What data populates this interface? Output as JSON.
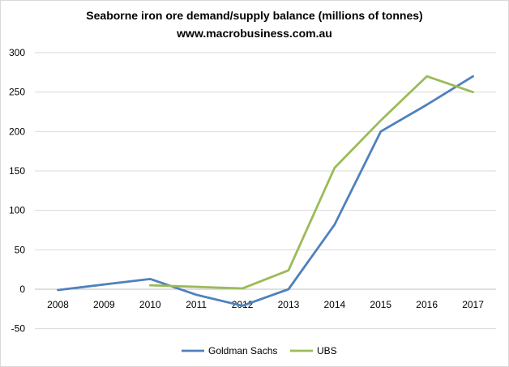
{
  "chart_data": {
    "type": "line",
    "title": "Seaborne iron ore demand/supply balance (millions of tonnes)",
    "subtitle": "www.macrobusiness.com.au",
    "categories": [
      "2008",
      "2009",
      "2010",
      "2011",
      "2012",
      "2013",
      "2014",
      "2015",
      "2016",
      "2017"
    ],
    "series": [
      {
        "name": "Goldman Sachs",
        "color": "#4f81bd",
        "values": [
          -1,
          6,
          13,
          -7,
          -21,
          0,
          82,
          200,
          234,
          270
        ]
      },
      {
        "name": "UBS",
        "color": "#9bbb59",
        "values": [
          null,
          null,
          5,
          3,
          1,
          24,
          154,
          214,
          270,
          250
        ]
      }
    ],
    "y_ticks": [
      "300",
      "250",
      "200",
      "150",
      "100",
      "50",
      "0",
      "-50"
    ],
    "ylim": [
      -50,
      300
    ],
    "grid": true,
    "legend": "bottom"
  }
}
